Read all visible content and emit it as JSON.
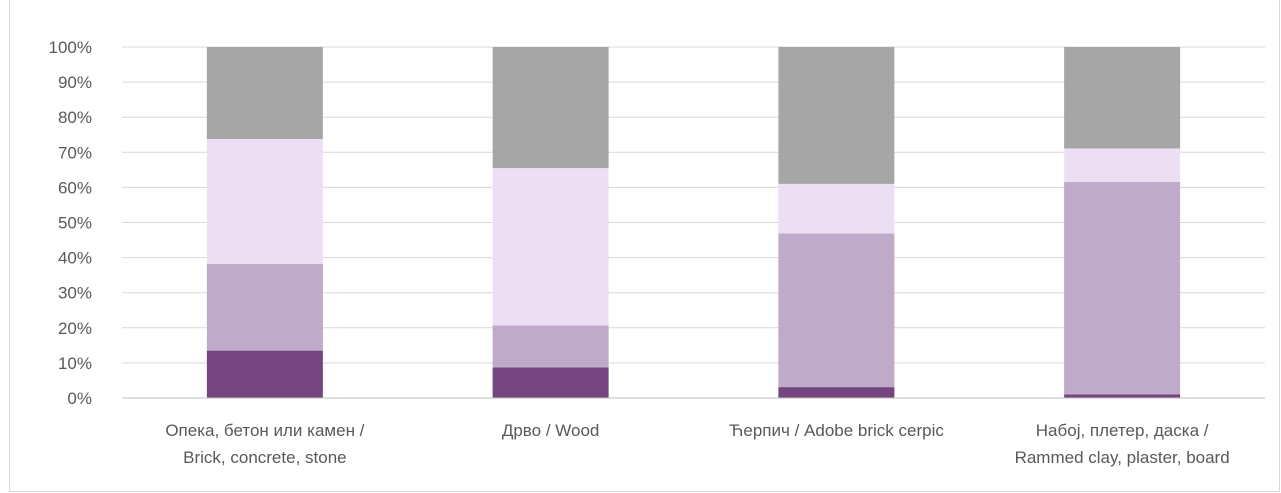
{
  "chart_data": {
    "type": "bar",
    "stacked": true,
    "percent": true,
    "categories": [
      [
        "Опека, бетон или камен /",
        "Brick, concrete, stone"
      ],
      [
        "Дрво / Wood"
      ],
      [
        "Ћерпич / Adobe brick cerpic"
      ],
      [
        "Набој, плетер, даска /",
        "Rammed clay, plaster, board"
      ]
    ],
    "series": [
      {
        "color": "#74457e",
        "values": [
          13.5,
          8.7,
          3.1,
          1.0
        ]
      },
      {
        "color": "#bfaac9",
        "values": [
          24.7,
          12.0,
          43.8,
          60.6
        ]
      },
      {
        "color": "#eddff3",
        "values": [
          35.6,
          44.8,
          14.1,
          9.5
        ]
      },
      {
        "color": "#a6a6a6",
        "values": [
          26.2,
          34.5,
          39.0,
          28.9
        ]
      }
    ],
    "yticks": [
      "0%",
      "10%",
      "20%",
      "30%",
      "40%",
      "50%",
      "60%",
      "70%",
      "80%",
      "90%",
      "100%"
    ],
    "ylim": [
      0,
      100
    ],
    "grid": true,
    "legend": "none"
  }
}
